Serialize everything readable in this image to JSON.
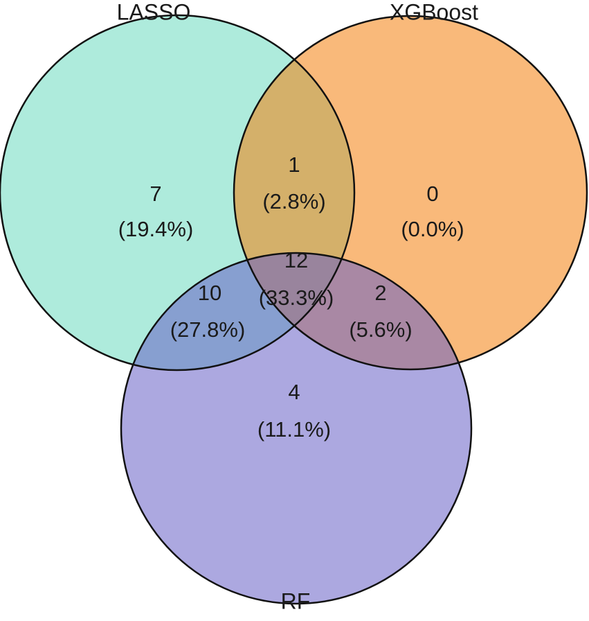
{
  "sets": [
    {
      "label": "LASSO"
    },
    {
      "label": "XGBoost"
    },
    {
      "label": "RF"
    }
  ],
  "regions": [
    {
      "count": 7,
      "percent": "(19.4%)"
    },
    {
      "count": 1,
      "percent": "(2.8%)"
    },
    {
      "count": 0,
      "percent": "(0.0%)"
    },
    {
      "count": 12,
      "percent": "(33.3%)"
    },
    {
      "count": 10,
      "percent": "(27.8%)"
    },
    {
      "count": 2,
      "percent": "(5.6%)"
    },
    {
      "count": 4,
      "percent": "(11.1%)"
    }
  ]
}
